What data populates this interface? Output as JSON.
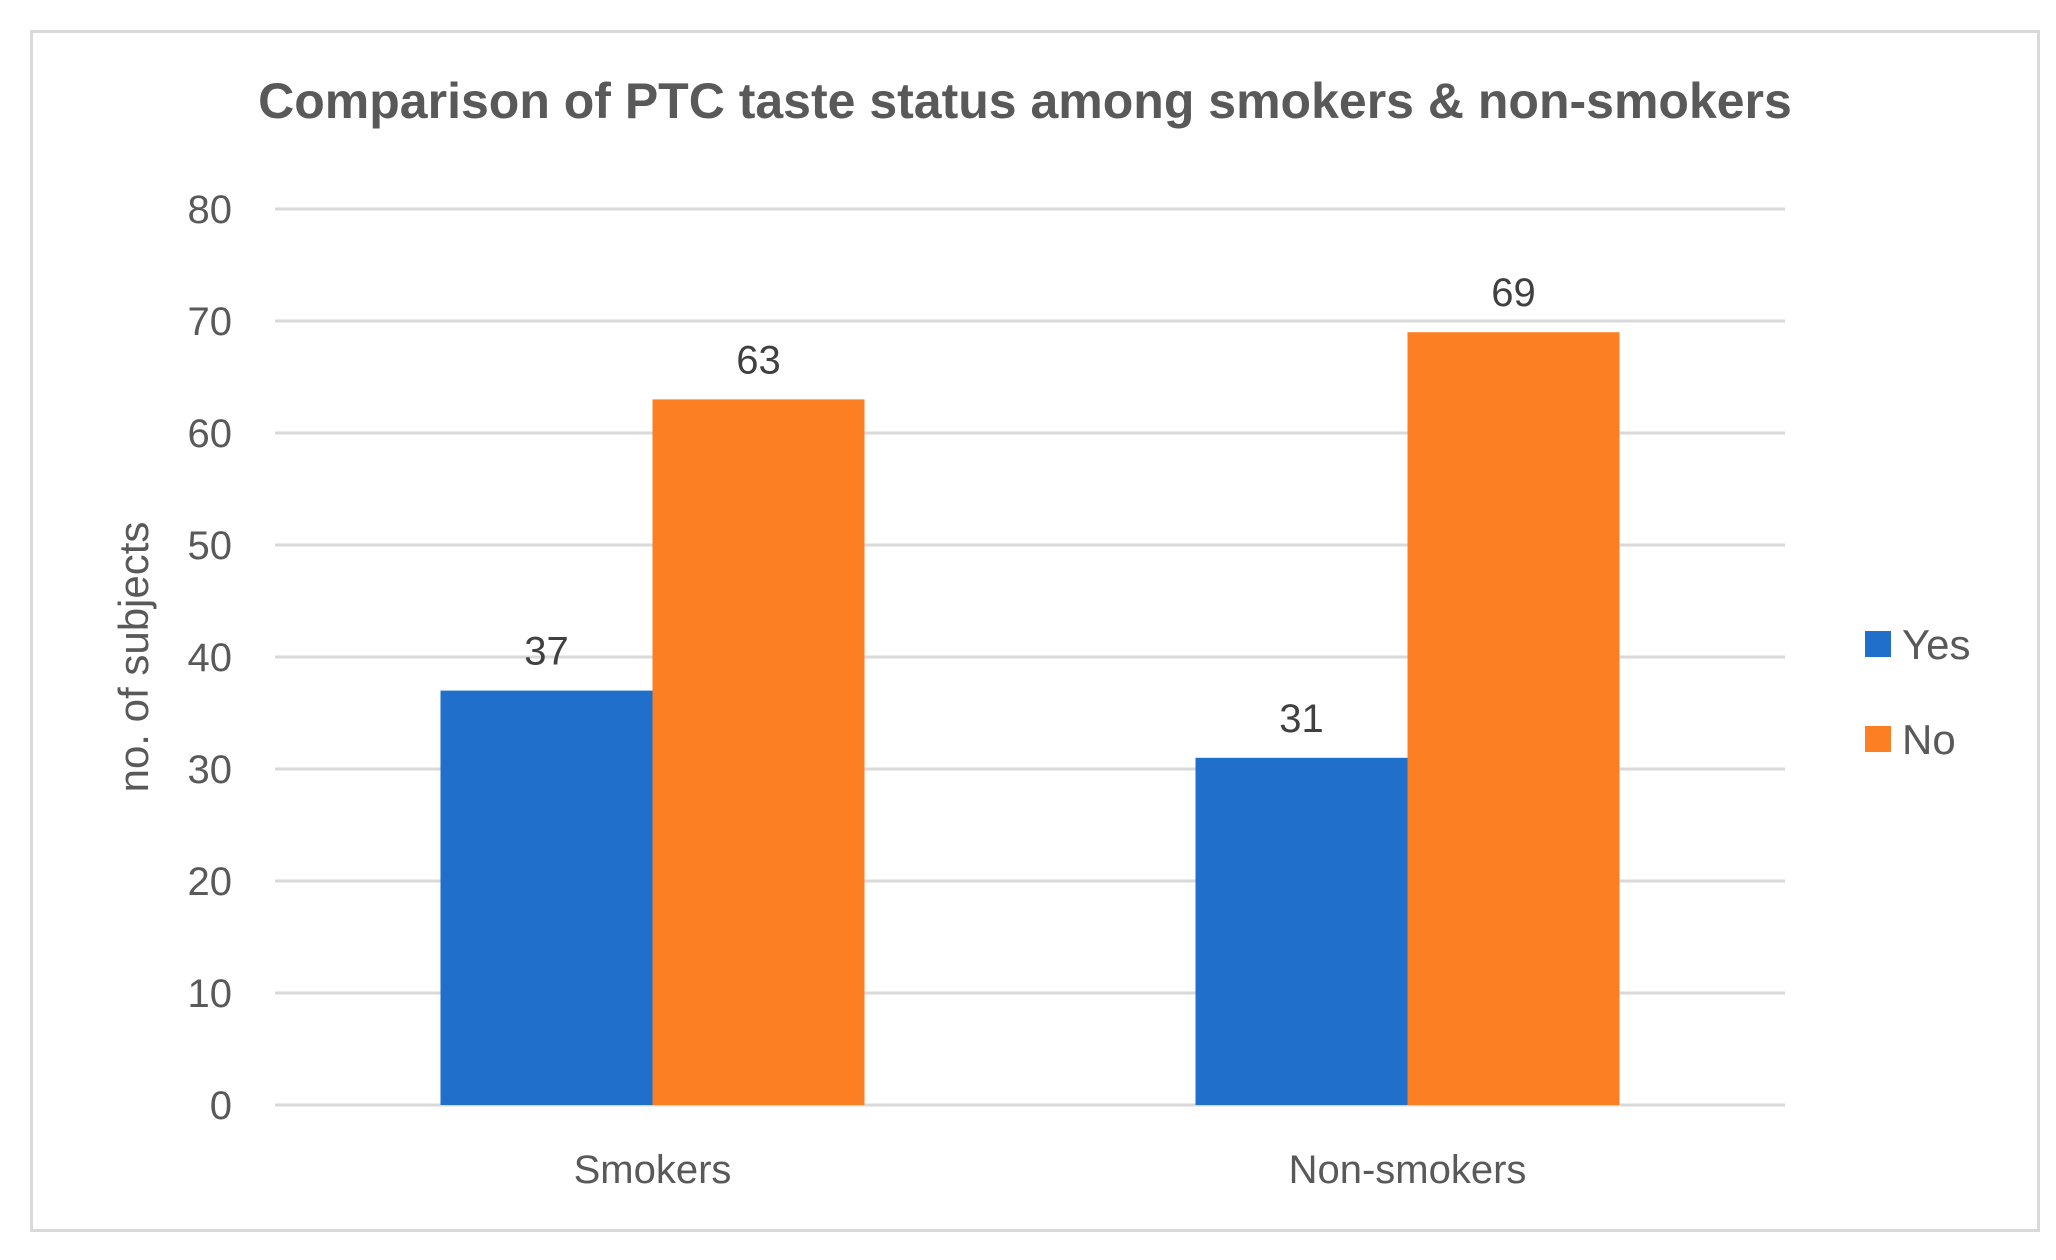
{
  "chart_data": {
    "type": "bar",
    "title": "Comparison of PTC taste status among smokers & non-smokers",
    "xlabel": "",
    "ylabel": "no. of subjects",
    "categories": [
      "Smokers",
      "Non-smokers"
    ],
    "series": [
      {
        "name": "Yes",
        "values": [
          37,
          31
        ],
        "color": "#1f6fcb"
      },
      {
        "name": "No",
        "values": [
          63,
          69
        ],
        "color": "#fd7f23"
      }
    ],
    "ylim": [
      0,
      80
    ],
    "yticks": [
      0,
      10,
      20,
      30,
      40,
      50,
      60,
      70,
      80
    ],
    "grid": true,
    "legend_position": "right",
    "data_labels": true
  }
}
